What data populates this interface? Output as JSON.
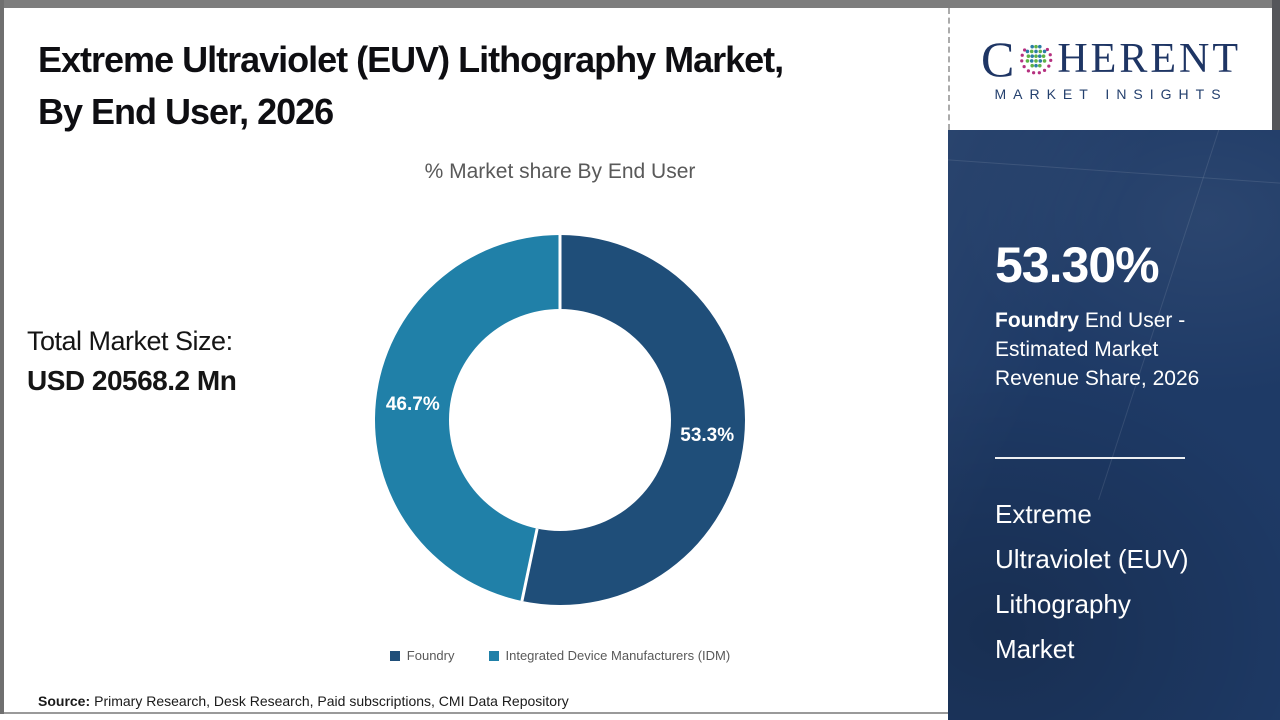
{
  "header": {
    "title_line1": "Extreme Ultraviolet (EUV) Lithography Market,",
    "title_line2": "By End User, 2026"
  },
  "stats_left": {
    "label": "Total Market Size:",
    "value": "USD 20568.2 Mn"
  },
  "chart_data": {
    "type": "pie",
    "donut": true,
    "hole_ratio": 0.6,
    "title": "% Market share By End User",
    "categories": [
      "Foundry",
      "Integrated Device Manufacturers (IDM)"
    ],
    "values": [
      53.3,
      46.7
    ],
    "value_labels": [
      "53.3%",
      "46.7%"
    ],
    "colors": [
      "#1F4E79",
      "#2080A8"
    ],
    "start_angle_deg": 0,
    "legend_position": "bottom"
  },
  "sidebar": {
    "logo": {
      "prefix": "C",
      "suffix": "HERENT",
      "subtitle": "MARKET INSIGHTS",
      "globe_icon": "dotted-globe-icon"
    },
    "stat_value": "53.30%",
    "stat_desc_bold": "Foundry",
    "stat_desc_rest": " End User - Estimated Market Revenue Share, 2026",
    "product_title": "Extreme Ultraviolet (EUV) Lithography Market"
  },
  "footer": {
    "source_label": "Source:",
    "source_text": "Primary Research, Desk Research, Paid subscriptions, CMI Data Repository"
  },
  "colors": {
    "sidebar_bg": "#1E3A66",
    "foundry_navy": "#1F4E79",
    "idm_teal": "#2080A8",
    "muted_text": "#595959",
    "headline_text": "#0E0E12"
  }
}
